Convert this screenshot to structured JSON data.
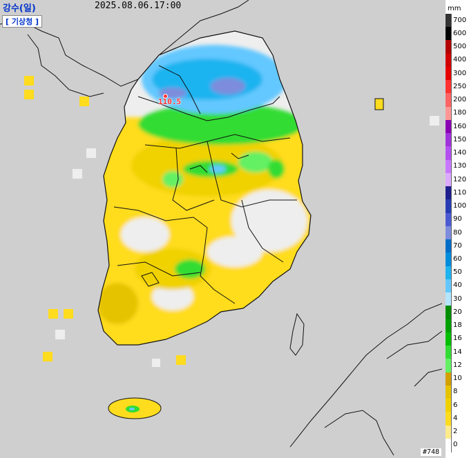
{
  "header": {
    "title": "강수(일)",
    "timestamp": "2025.08.06.17:00",
    "agency": "[ 기상청 ]"
  },
  "peak_label": "110.5",
  "image_code": "#748",
  "legend": {
    "unit": "mm",
    "levels": [
      {
        "label": "700",
        "color": "#333333"
      },
      {
        "label": "600",
        "color": "#000000"
      },
      {
        "label": "500",
        "color": "#b30000"
      },
      {
        "label": "400",
        "color": "#d20000"
      },
      {
        "label": "300",
        "color": "#e60000"
      },
      {
        "label": "250",
        "color": "#ff3232"
      },
      {
        "label": "200",
        "color": "#ff6464"
      },
      {
        "label": "180",
        "color": "#ff9696"
      },
      {
        "label": "160",
        "color": "#8a00b3"
      },
      {
        "label": "150",
        "color": "#a032dc"
      },
      {
        "label": "140",
        "color": "#b450f0"
      },
      {
        "label": "130",
        "color": "#c878ff"
      },
      {
        "label": "120",
        "color": "#dcaaff"
      },
      {
        "label": "110",
        "color": "#1e1e8c"
      },
      {
        "label": "100",
        "color": "#283cb4"
      },
      {
        "label": "90",
        "color": "#4b5ad2"
      },
      {
        "label": "80",
        "color": "#7d8cdc"
      },
      {
        "label": "70",
        "color": "#006ec8"
      },
      {
        "label": "60",
        "color": "#008cdc"
      },
      {
        "label": "50",
        "color": "#1eb4f0"
      },
      {
        "label": "40",
        "color": "#64c8ff"
      },
      {
        "label": "30",
        "color": "#b4e6ff"
      },
      {
        "label": "20",
        "color": "#008c00"
      },
      {
        "label": "18",
        "color": "#00a000"
      },
      {
        "label": "16",
        "color": "#00be00"
      },
      {
        "label": "14",
        "color": "#32dc32"
      },
      {
        "label": "12",
        "color": "#64f064"
      },
      {
        "label": "10",
        "color": "#d2a000"
      },
      {
        "label": "8",
        "color": "#e6c300"
      },
      {
        "label": "6",
        "color": "#f0d200"
      },
      {
        "label": "4",
        "color": "#ffdc1e"
      },
      {
        "label": "2",
        "color": "#ffeb8c"
      },
      {
        "label": "0",
        "color": "#ffffff"
      }
    ]
  },
  "colors": {
    "sea_land_background": "#cfcfcf",
    "no_rain": "#eeeeee",
    "header_blue": "#0033cc",
    "peak_red": "#ff3030"
  }
}
